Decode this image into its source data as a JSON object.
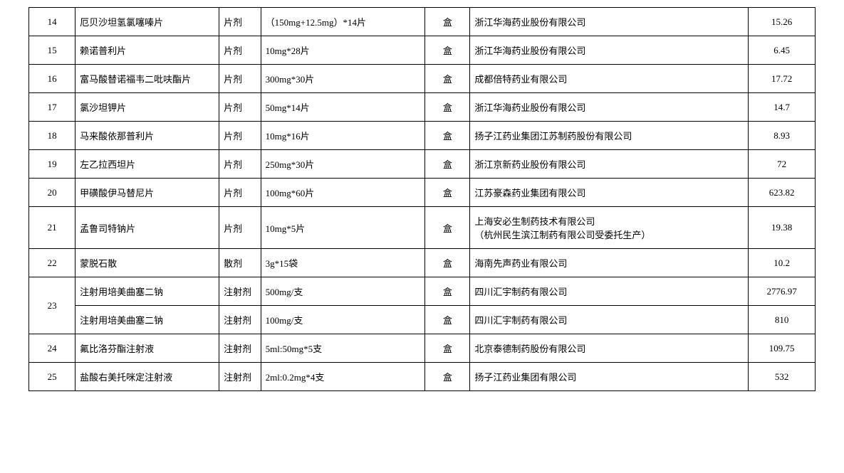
{
  "table": {
    "border_color": "#000000",
    "background_color": "#ffffff",
    "text_color": "#000000",
    "font_size": 13,
    "columns": [
      {
        "key": "id",
        "class": "col-id",
        "align": "center",
        "width_pct": 5.9
      },
      {
        "key": "name",
        "class": "col-name",
        "align": "left",
        "width_pct": 18.3
      },
      {
        "key": "form",
        "class": "col-form",
        "align": "left",
        "width_pct": 5.3
      },
      {
        "key": "spec",
        "class": "col-spec",
        "align": "left",
        "width_pct": 20.9
      },
      {
        "key": "unit",
        "class": "col-unit",
        "align": "center",
        "width_pct": 5.7
      },
      {
        "key": "mfg",
        "class": "col-mfg",
        "align": "left",
        "width_pct": 35.4
      },
      {
        "key": "price",
        "class": "col-price",
        "align": "center",
        "width_pct": 8.5
      }
    ],
    "rows": [
      {
        "id": "14",
        "name": "厄贝沙坦氢氯噻嗪片",
        "form": "片剂",
        "spec": "（150mg+12.5mg）*14片",
        "unit": "盒",
        "mfg": "浙江华海药业股份有限公司",
        "price": "15.26"
      },
      {
        "id": "15",
        "name": "赖诺普利片",
        "form": "片剂",
        "spec": "10mg*28片",
        "unit": "盒",
        "mfg": "浙江华海药业股份有限公司",
        "price": "6.45"
      },
      {
        "id": "16",
        "name": "富马酸替诺福韦二吡呋酯片",
        "form": "片剂",
        "spec": "300mg*30片",
        "unit": "盒",
        "mfg": "成都倍特药业有限公司",
        "price": "17.72"
      },
      {
        "id": "17",
        "name": "氯沙坦钾片",
        "form": "片剂",
        "spec": "50mg*14片",
        "unit": "盒",
        "mfg": "浙江华海药业股份有限公司",
        "price": "14.7"
      },
      {
        "id": "18",
        "name": "马来酸依那普利片",
        "form": "片剂",
        "spec": "10mg*16片",
        "unit": "盒",
        "mfg": "扬子江药业集团江苏制药股份有限公司",
        "price": "8.93"
      },
      {
        "id": "19",
        "name": "左乙拉西坦片",
        "form": "片剂",
        "spec": "250mg*30片",
        "unit": "盒",
        "mfg": "浙江京新药业股份有限公司",
        "price": "72"
      },
      {
        "id": "20",
        "name": "甲磺酸伊马替尼片",
        "form": "片剂",
        "spec": "100mg*60片",
        "unit": "盒",
        "mfg": "江苏豪森药业集团有限公司",
        "price": "623.82"
      },
      {
        "id": "21",
        "name": "孟鲁司特钠片",
        "form": "片剂",
        "spec": "10mg*5片",
        "unit": "盒",
        "mfg": "上海安必生制药技术有限公司\n（杭州民生滨江制药有限公司受委托生产）",
        "price": "19.38"
      },
      {
        "id": "22",
        "name": "蒙脱石散",
        "form": "散剂",
        "spec": "3g*15袋",
        "unit": "盒",
        "mfg": "海南先声药业有限公司",
        "price": "10.2"
      },
      {
        "id": "23",
        "rowspan": 2,
        "sub": [
          {
            "name": "注射用培美曲塞二钠",
            "form": "注射剂",
            "spec": "500mg/支",
            "unit": "盒",
            "mfg": "四川汇宇制药有限公司",
            "price": "2776.97"
          },
          {
            "name": "注射用培美曲塞二钠",
            "form": "注射剂",
            "spec": "100mg/支",
            "unit": "盒",
            "mfg": "四川汇宇制药有限公司",
            "price": "810"
          }
        ]
      },
      {
        "id": "24",
        "name": "氟比洛芬酯注射液",
        "form": "注射剂",
        "spec": "5ml:50mg*5支",
        "unit": "盒",
        "mfg": "北京泰德制药股份有限公司",
        "price": "109.75"
      },
      {
        "id": "25",
        "name": "盐酸右美托咪定注射液",
        "form": "注射剂",
        "spec": "2ml:0.2mg*4支",
        "unit": "盒",
        "mfg": "扬子江药业集团有限公司",
        "price": "532"
      }
    ]
  }
}
